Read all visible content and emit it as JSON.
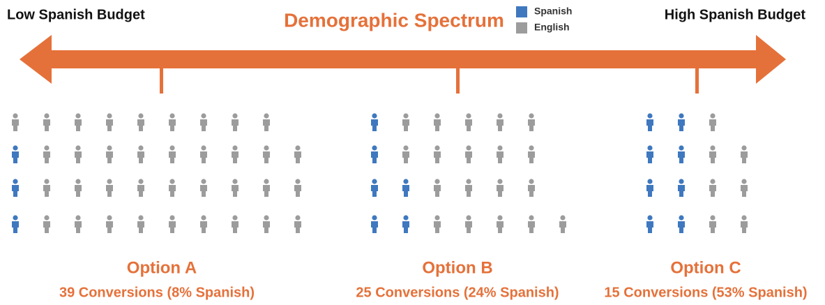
{
  "title": "Demographic Spectrum",
  "left_label": "Low Spanish Budget",
  "right_label": "High Spanish Budget",
  "legend": [
    {
      "name": "Spanish",
      "color": "#3f78bf"
    },
    {
      "name": "English",
      "color": "#9c9c9c"
    }
  ],
  "options": [
    {
      "name": "Option A",
      "summary": "39 Conversions (8% Spanish)",
      "conversions": 39,
      "spanish": 3
    },
    {
      "name": "Option B",
      "summary": "25 Conversions (24% Spanish)",
      "conversions": 25,
      "spanish": 6
    },
    {
      "name": "Option C",
      "summary": "15 Conversions (53% Spanish)",
      "conversions": 15,
      "spanish": 8
    }
  ]
}
